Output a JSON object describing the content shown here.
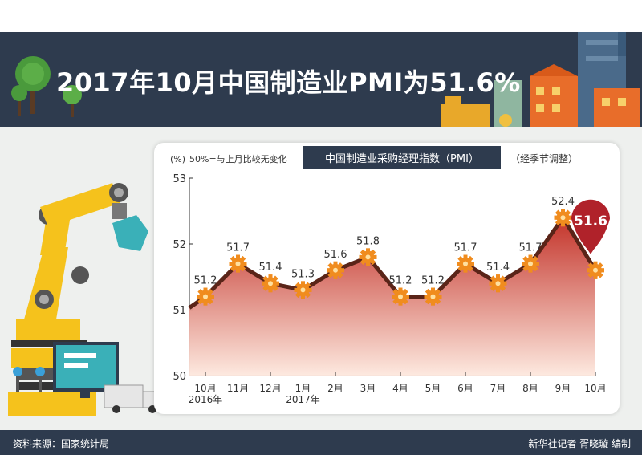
{
  "header": {
    "title": "2017年10月中国制造业PMI为51.6%"
  },
  "footer": {
    "source": "资料来源：国家统计局",
    "credit": "新华社记者 胥晓璇 编制"
  },
  "chart_data": {
    "type": "area",
    "title": "中国制造业采购经理指数（PMI）",
    "subtitle": "（经季节调整）",
    "unit_label": "(%)",
    "note": "50%=与上月比较无变化",
    "categories": [
      "10月",
      "11月",
      "12月",
      "1月",
      "2月",
      "3月",
      "4月",
      "5月",
      "6月",
      "7月",
      "8月",
      "9月",
      "10月"
    ],
    "year_labels": [
      {
        "index": 0,
        "label": "2016年"
      },
      {
        "index": 3,
        "label": "2017年"
      }
    ],
    "values": [
      51.2,
      51.7,
      51.4,
      51.3,
      51.6,
      51.8,
      51.2,
      51.2,
      51.7,
      51.4,
      51.7,
      52.4,
      51.6
    ],
    "highlight": {
      "index": 12,
      "label": "51.6"
    },
    "ylim": [
      50,
      53
    ],
    "yticks": [
      50,
      51,
      52,
      53
    ],
    "colors": {
      "area_top": "#c0281e",
      "area_bottom": "#fde8de",
      "line": "#5a2418",
      "marker": "#f08c1e",
      "highlight": "#b0222a"
    }
  }
}
